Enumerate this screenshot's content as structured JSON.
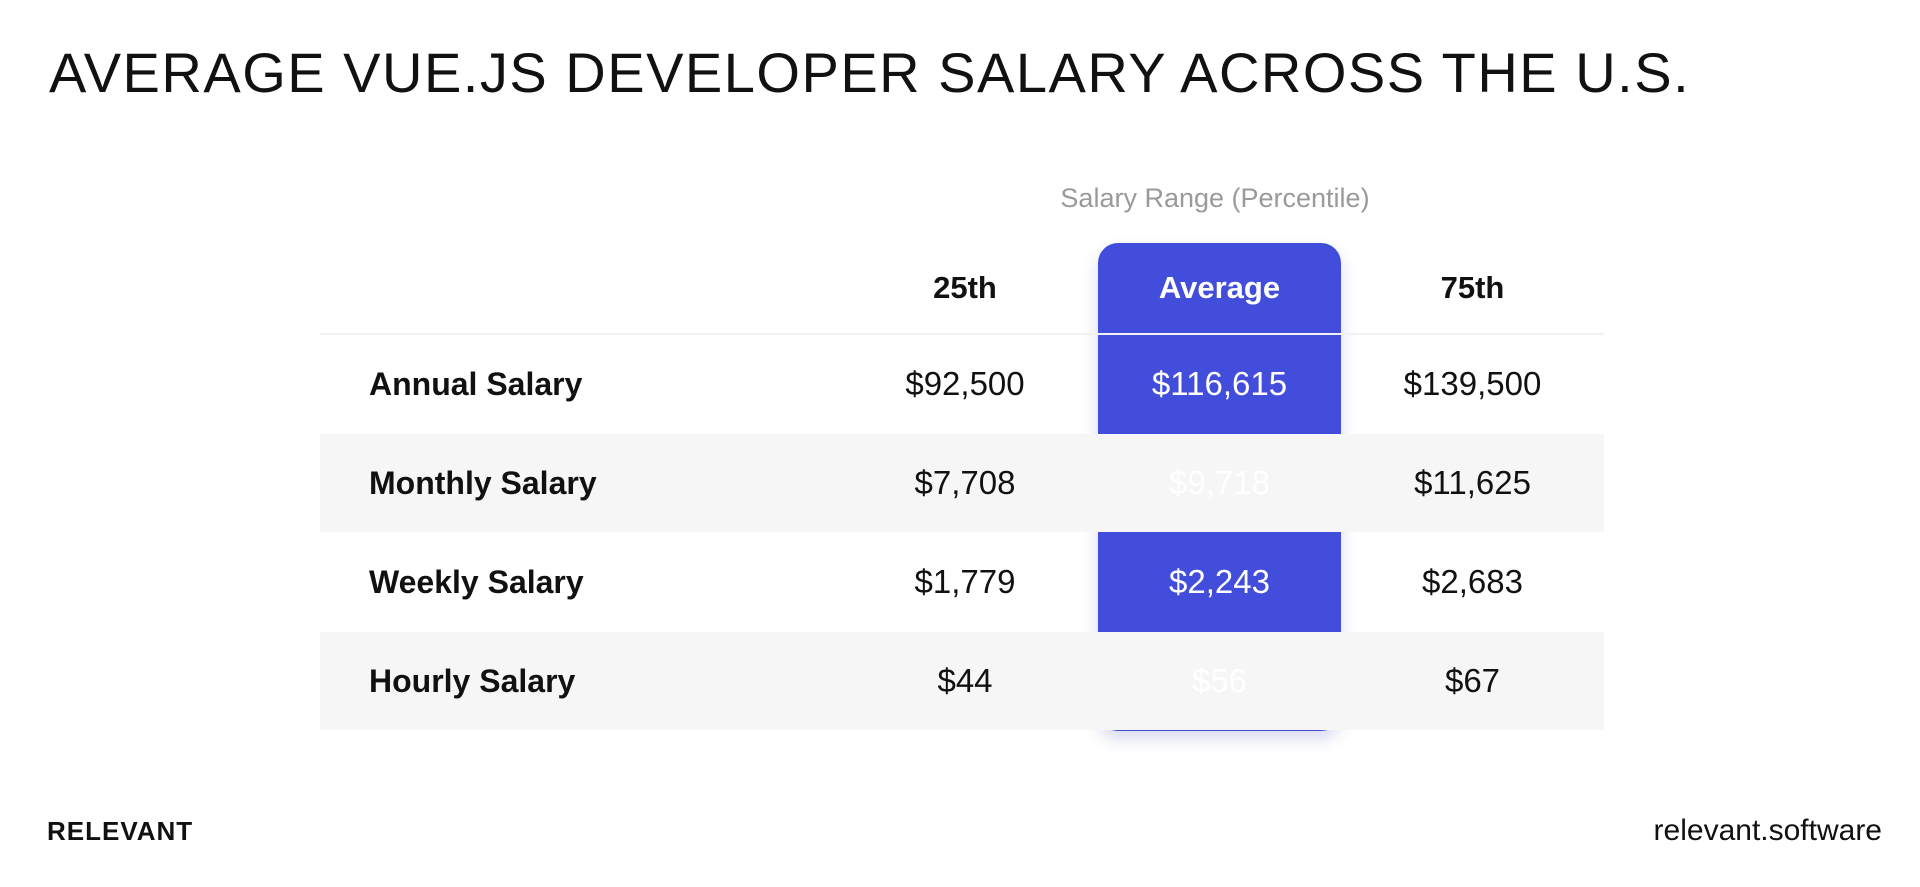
{
  "title": "AVERAGE VUE.JS DEVELOPER SALARY ACROSS THE U.S.",
  "range_label": "Salary Range (Percentile)",
  "columns": [
    "25th",
    "Average",
    "75th"
  ],
  "rows": [
    {
      "label": "Annual Salary",
      "p25": "$92,500",
      "avg": "$116,615",
      "p75": "$139,500"
    },
    {
      "label": "Monthly Salary",
      "p25": "$7,708",
      "avg": "$9,718",
      "p75": "$11,625"
    },
    {
      "label": "Weekly Salary",
      "p25": "$1,779",
      "avg": "$2,243",
      "p75": "$2,683"
    },
    {
      "label": "Hourly Salary",
      "p25": "$44",
      "avg": "$56",
      "p75": "$67"
    }
  ],
  "footer": {
    "logo": "RELEVANT",
    "url": "relevant.software"
  },
  "colors": {
    "accent": "#424ddb",
    "row_alt": "#f6f6f6",
    "muted_text": "#9a9a9a"
  },
  "chart_data": {
    "type": "table",
    "title": "AVERAGE VUE.JS DEVELOPER SALARY ACROSS THE U.S.",
    "subtitle": "Salary Range (Percentile)",
    "categories": [
      "Annual Salary",
      "Monthly Salary",
      "Weekly Salary",
      "Hourly Salary"
    ],
    "series": [
      {
        "name": "25th",
        "values": [
          92500,
          7708,
          1779,
          44
        ]
      },
      {
        "name": "Average",
        "values": [
          116615,
          9718,
          2243,
          56
        ]
      },
      {
        "name": "75th",
        "values": [
          139500,
          11625,
          2683,
          67
        ]
      }
    ],
    "highlighted_series": "Average"
  }
}
